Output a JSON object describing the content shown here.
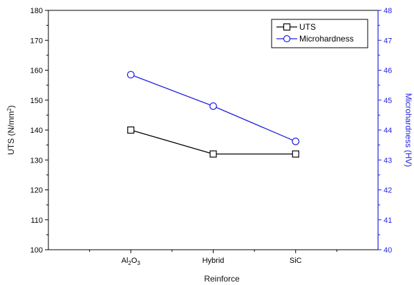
{
  "chart_data": {
    "type": "line",
    "categories": [
      "Al2O3",
      "Hybrid",
      "SiC"
    ],
    "category_labels": [
      {
        "main": "Al",
        "sub1": "2",
        "mid": "O",
        "sub2": "3"
      },
      {
        "main": "Hybrid"
      },
      {
        "main": "SiC"
      }
    ],
    "xlabel": "Reinforce",
    "ylabel": {
      "main": "UTS (N/mm",
      "sup": "2",
      "end": ")"
    },
    "y2label": "Microhardness (HV)",
    "ylim": [
      100,
      180
    ],
    "y2lim": [
      40,
      48
    ],
    "yticks": [
      100,
      110,
      120,
      130,
      140,
      150,
      160,
      170,
      180
    ],
    "y2ticks": [
      40,
      41,
      42,
      43,
      44,
      45,
      46,
      47,
      48
    ],
    "grid": false,
    "legend_position": "top-right",
    "series": [
      {
        "name": "UTS",
        "axis": "left",
        "marker": "square",
        "color": "#000000",
        "values": [
          140,
          132,
          132
        ]
      },
      {
        "name": "Microhardness",
        "axis": "right",
        "marker": "circle",
        "color": "#1f1fe0",
        "values": [
          45.85,
          44.8,
          43.62
        ]
      }
    ]
  }
}
